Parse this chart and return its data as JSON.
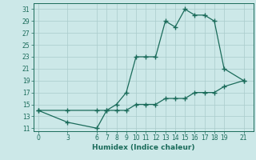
{
  "xlabel": "Humidex (Indice chaleur)",
  "ylabel": "",
  "bg_color": "#cce8e8",
  "grid_color": "#aacccc",
  "line_color": "#1a6b5a",
  "xticks": [
    0,
    3,
    6,
    7,
    8,
    9,
    10,
    11,
    12,
    13,
    14,
    15,
    16,
    17,
    18,
    19,
    21
  ],
  "yticks": [
    11,
    13,
    15,
    17,
    19,
    21,
    23,
    25,
    27,
    29,
    31
  ],
  "xlim": [
    -0.5,
    22
  ],
  "ylim": [
    10.5,
    32
  ],
  "curve1_x": [
    0,
    3,
    6,
    7,
    8,
    9,
    10,
    11,
    12,
    13,
    14,
    15,
    16,
    17,
    18,
    19,
    21
  ],
  "curve1_y": [
    14,
    12,
    11,
    14,
    15,
    17,
    23,
    23,
    23,
    29,
    28,
    31,
    30,
    30,
    29,
    21,
    19
  ],
  "curve2_x": [
    0,
    3,
    6,
    7,
    8,
    9,
    10,
    11,
    12,
    13,
    14,
    15,
    16,
    17,
    18,
    19,
    21
  ],
  "curve2_y": [
    14,
    14,
    14,
    14,
    14,
    14,
    15,
    15,
    15,
    16,
    16,
    16,
    17,
    17,
    17,
    18,
    19
  ],
  "marker": "+",
  "markersize": 4,
  "linewidth": 0.9,
  "tick_fontsize": 5.5,
  "xlabel_fontsize": 6.5
}
